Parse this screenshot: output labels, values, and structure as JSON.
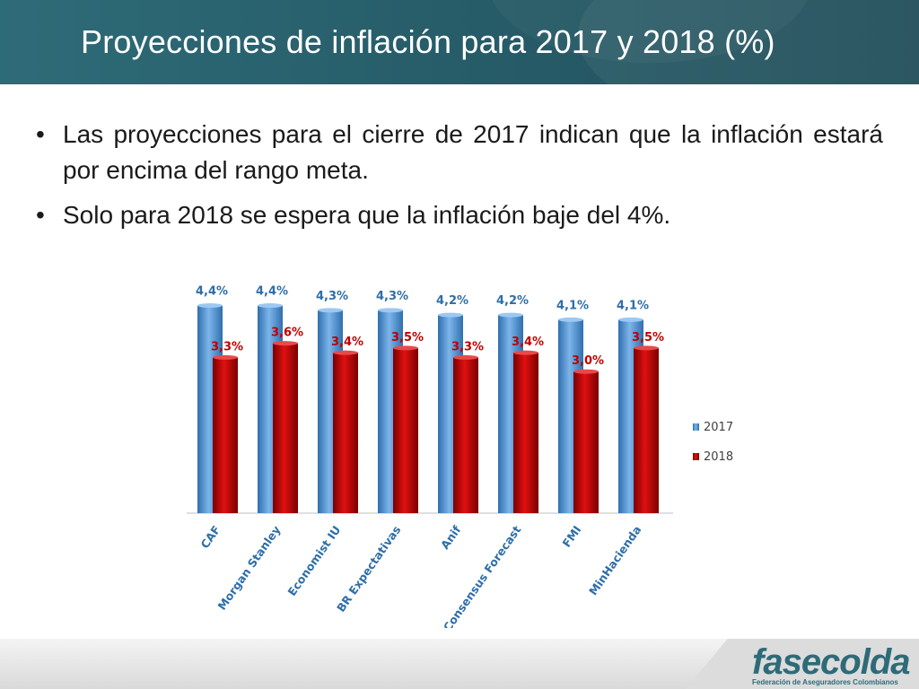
{
  "slide": {
    "title": "Proyecciones de inflación para 2017 y 2018 (%)",
    "bullets": [
      "Las proyecciones para el cierre de 2017 indican que la inflación estará por encima del rango meta.",
      "Solo para 2018 se espera que la inflación baje del 4%."
    ]
  },
  "logo": {
    "name": "fasecolda",
    "tagline": "Federación de Aseguradores Colombianos"
  },
  "colors": {
    "header": "#2e6b78",
    "series_2017": "#5b9bd5",
    "series_2018": "#c00000",
    "label_2017": "#2e6ea8",
    "label_2018": "#c00000",
    "category_label": "#2e6ea8"
  },
  "chart_data": {
    "type": "bar",
    "categories": [
      "CAF",
      "Morgan Stanley",
      "Economist IU",
      "BR Expectativas",
      "Anif",
      "Consensus Forecast",
      "FMI",
      "MinHacienda"
    ],
    "series": [
      {
        "name": "2017",
        "values": [
          4.4,
          4.4,
          4.3,
          4.3,
          4.2,
          4.2,
          4.1,
          4.1
        ],
        "labels": [
          "4,4%",
          "4,4%",
          "4,3%",
          "4,3%",
          "4,2%",
          "4,2%",
          "4,1%",
          "4,1%"
        ]
      },
      {
        "name": "2018",
        "values": [
          3.3,
          3.6,
          3.4,
          3.5,
          3.3,
          3.4,
          3.0,
          3.5
        ],
        "labels": [
          "3,3%",
          "3,6%",
          "3,4%",
          "3,5%",
          "3,3%",
          "3,4%",
          "3,0%",
          "3,5%"
        ]
      }
    ],
    "legend_position": "right",
    "grid": false
  }
}
